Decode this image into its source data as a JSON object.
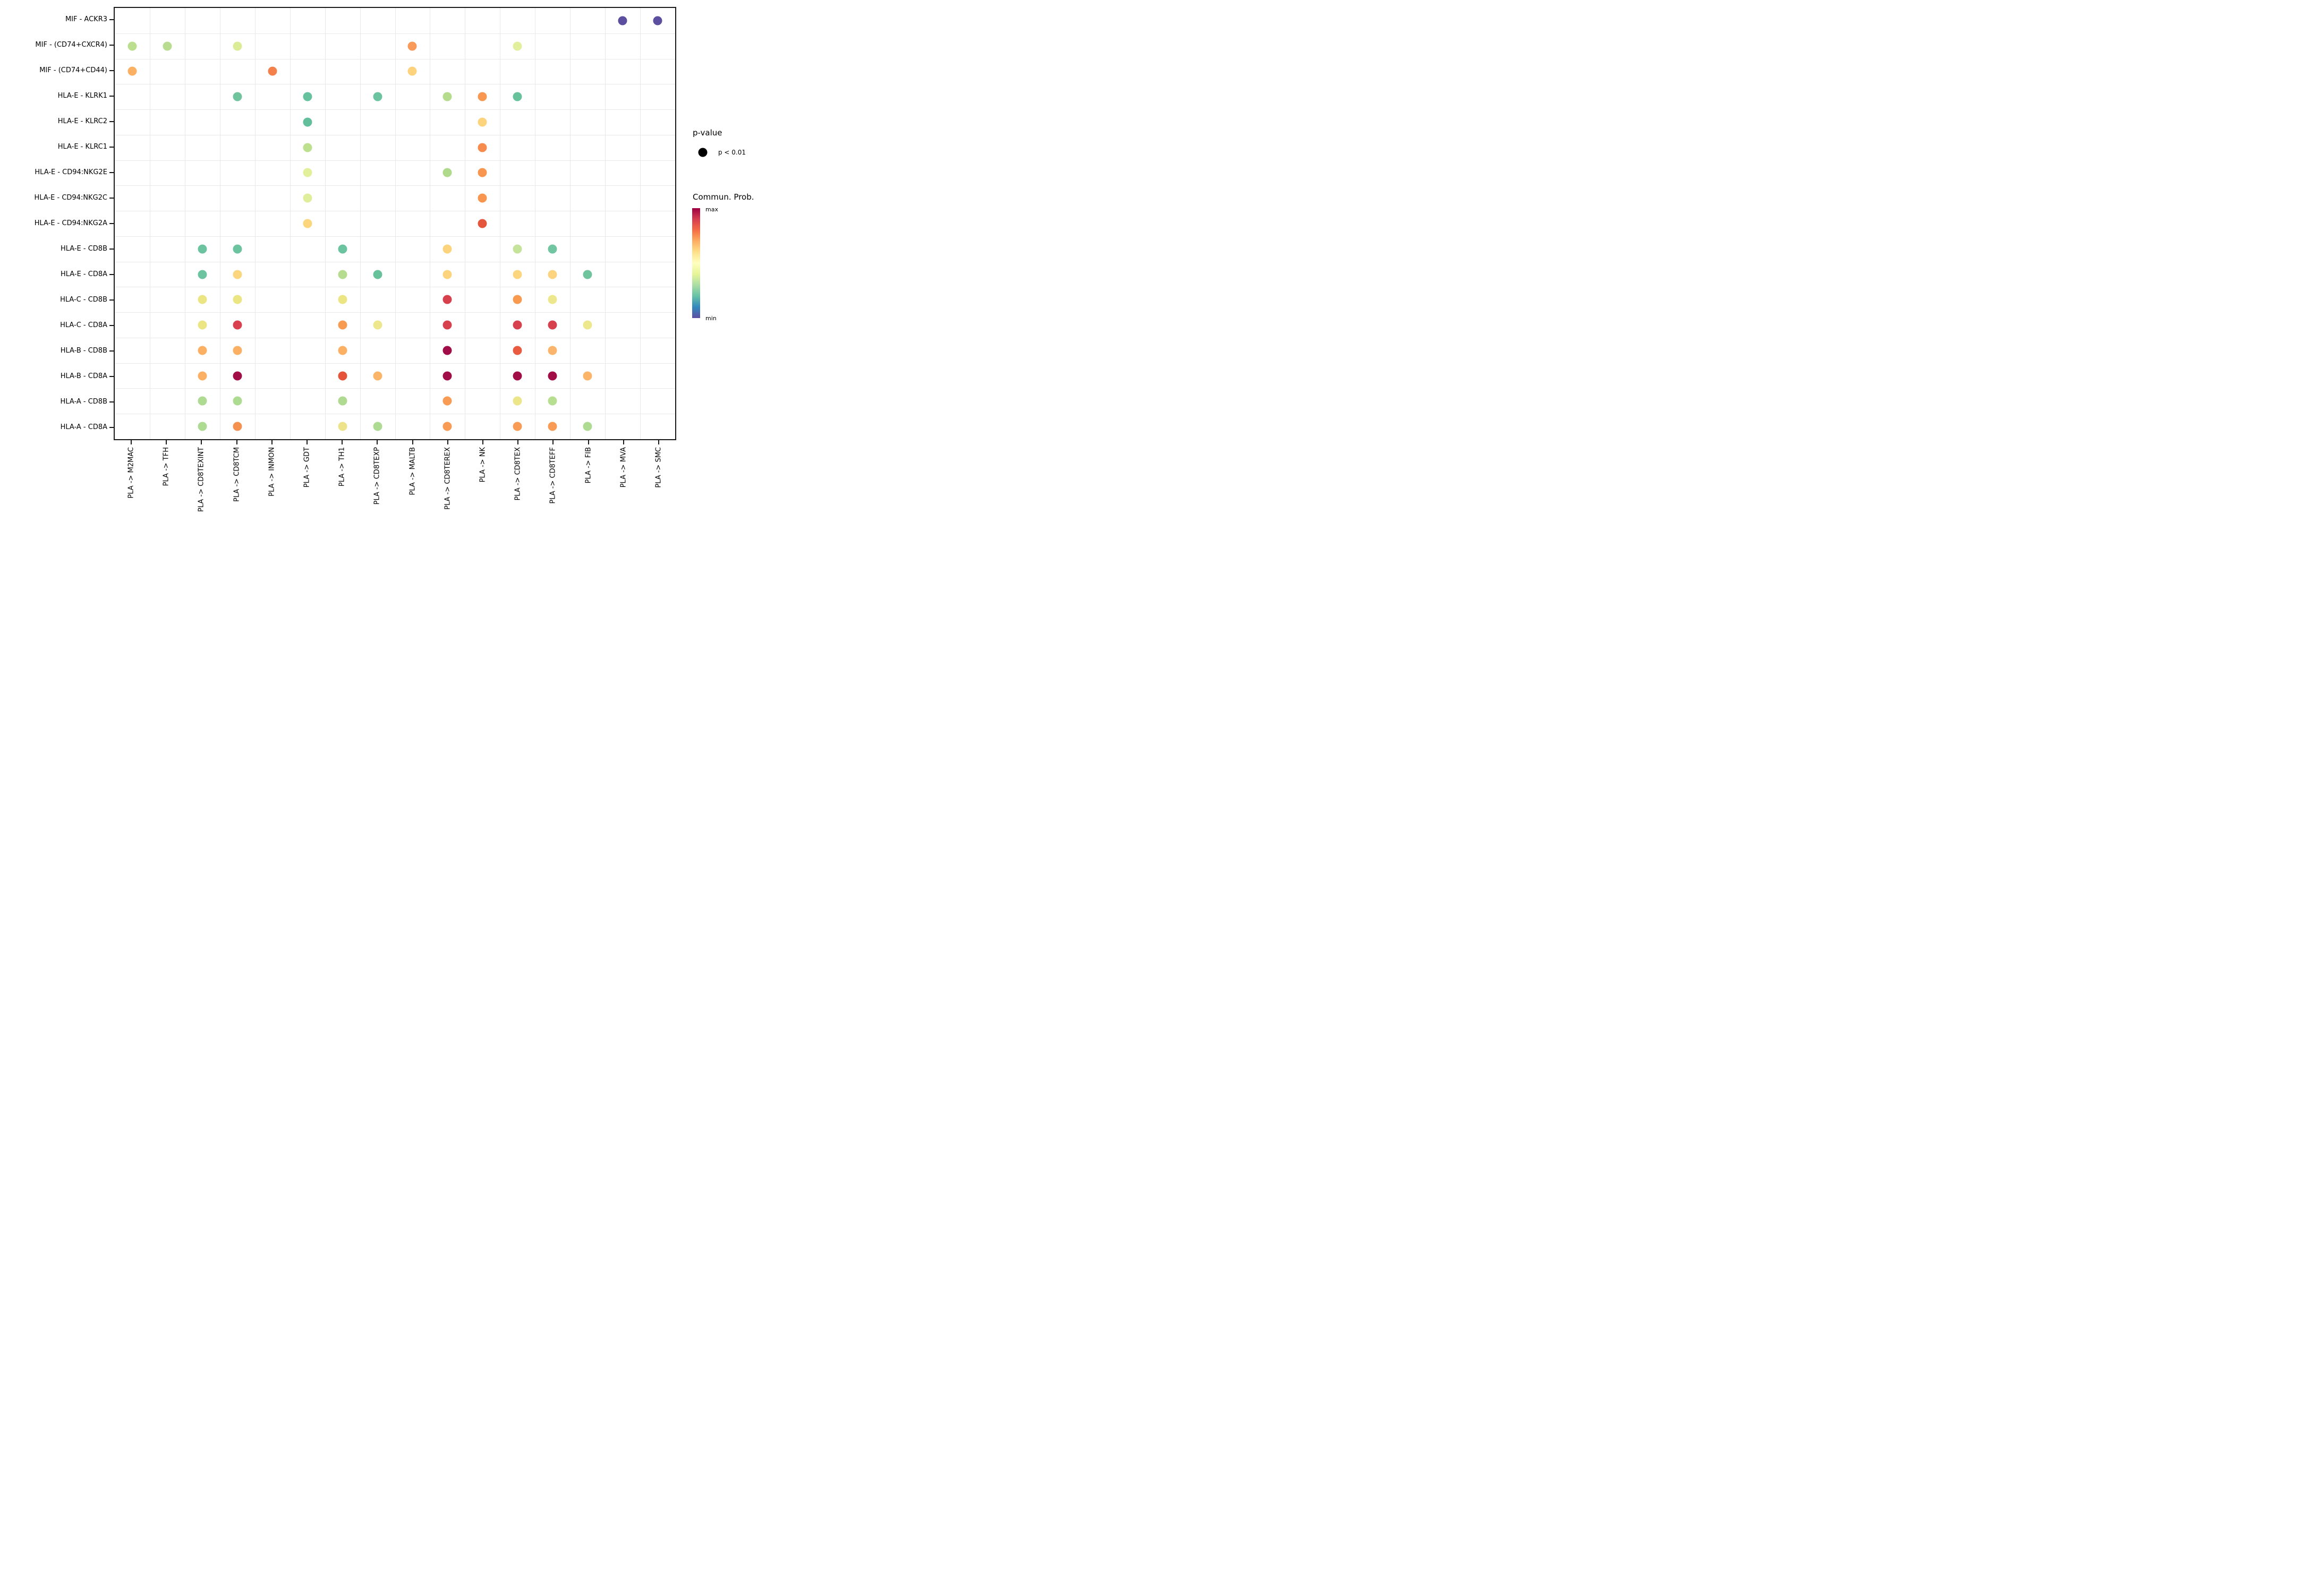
{
  "figure": {
    "background": "#FFFFFF",
    "axis_border_color": "#1A1A1A",
    "gridline_color": "#E8E8E8"
  },
  "legend": {
    "pvalue_title": "p-value",
    "pvalue_items": [
      {
        "label": "p < 0.01",
        "dot_color": "#000000"
      }
    ],
    "colorbar_title": "Commun. Prob.",
    "colorbar_max_label": "max",
    "colorbar_min_label": "min",
    "colorbar_gradient_top_to_bottom": [
      "#9E0142",
      "#D53E4F",
      "#F46D43",
      "#FDAE61",
      "#FEE08B",
      "#FFFFBF",
      "#E6F598",
      "#ABDDA4",
      "#66C2A5",
      "#3288BD",
      "#5E4FA2"
    ]
  },
  "chart_data": {
    "type": "scatter",
    "subtype": "dot-matrix-bubble-plot",
    "x_categories": [
      "PLA -> M2MAC",
      "PLA -> TFH",
      "PLA -> CD8TEXINT",
      "PLA -> CD8TCM",
      "PLA -> INMON",
      "PLA -> GDT",
      "PLA -> TH1",
      "PLA -> CD8TEXP",
      "PLA -> MALTB",
      "PLA -> CD8TEREX",
      "PLA -> NK",
      "PLA -> CD8TEX",
      "PLA -> CD8TEFF",
      "PLA -> FIB",
      "PLA -> MVA",
      "PLA -> SMC"
    ],
    "y_categories": [
      "MIF - ACKR3",
      "MIF - (CD74+CXCR4)",
      "MIF - (CD74+CD44)",
      "HLA-E - KLRK1",
      "HLA-E - KLRC2",
      "HLA-E - KLRC1",
      "HLA-E - CD94:NKG2E",
      "HLA-E - CD94:NKG2C",
      "HLA-E - CD94:NKG2A",
      "HLA-E - CD8B",
      "HLA-E - CD8A",
      "HLA-C - CD8B",
      "HLA-C - CD8A",
      "HLA-B - CD8B",
      "HLA-B - CD8A",
      "HLA-A - CD8B",
      "HLA-A - CD8A"
    ],
    "color_encoding": "Commun. Prob.: min (purple #5E4FA2) to max (dark red #9E0142), reversed Spectral colormap",
    "size_encoding": "p-value: all plotted dots are p < 0.01 (uniform size)",
    "points_format": [
      "y_index",
      "x_index",
      "color"
    ],
    "points": [
      [
        0,
        14,
        "#5C4FA0"
      ],
      [
        0,
        15,
        "#5C4FA0"
      ],
      [
        1,
        0,
        "#BCDE8F"
      ],
      [
        1,
        1,
        "#B8DD90"
      ],
      [
        1,
        3,
        "#DCEC96"
      ],
      [
        1,
        8,
        "#F89A5A"
      ],
      [
        1,
        11,
        "#E2EF9D"
      ],
      [
        2,
        0,
        "#FBB064"
      ],
      [
        2,
        4,
        "#F4814C"
      ],
      [
        2,
        8,
        "#FDD37E"
      ],
      [
        3,
        3,
        "#6FC49D"
      ],
      [
        3,
        5,
        "#66C19E"
      ],
      [
        3,
        7,
        "#6CC3A0"
      ],
      [
        3,
        9,
        "#B5DC8D"
      ],
      [
        3,
        10,
        "#F8974F"
      ],
      [
        3,
        11,
        "#67C19B"
      ],
      [
        4,
        5,
        "#63BF9B"
      ],
      [
        4,
        10,
        "#FCD47D"
      ],
      [
        5,
        5,
        "#BCE08D"
      ],
      [
        5,
        10,
        "#F68B4D"
      ],
      [
        6,
        5,
        "#E2EF9B"
      ],
      [
        6,
        9,
        "#AFDA8C"
      ],
      [
        6,
        10,
        "#F8964F"
      ],
      [
        7,
        5,
        "#DFEE9A"
      ],
      [
        7,
        10,
        "#F8964F"
      ],
      [
        8,
        5,
        "#FBD67D"
      ],
      [
        8,
        10,
        "#E4563C"
      ],
      [
        9,
        2,
        "#6CC3A0"
      ],
      [
        9,
        3,
        "#6CC3A0"
      ],
      [
        9,
        6,
        "#6CC3A0"
      ],
      [
        9,
        9,
        "#FCD47D"
      ],
      [
        9,
        11,
        "#C6E39C"
      ],
      [
        9,
        12,
        "#71C5A1"
      ],
      [
        10,
        2,
        "#6CC3A0"
      ],
      [
        10,
        3,
        "#FCD67E"
      ],
      [
        10,
        6,
        "#B5DC8F"
      ],
      [
        10,
        7,
        "#67C19B"
      ],
      [
        10,
        9,
        "#FCD47D"
      ],
      [
        10,
        11,
        "#FCD67E"
      ],
      [
        10,
        12,
        "#FCD480"
      ],
      [
        10,
        13,
        "#6FC49D"
      ],
      [
        11,
        2,
        "#EBE583"
      ],
      [
        11,
        3,
        "#EBE583"
      ],
      [
        11,
        6,
        "#EBE583"
      ],
      [
        11,
        9,
        "#D7414D"
      ],
      [
        11,
        11,
        "#F89B51"
      ],
      [
        11,
        12,
        "#EDE88D"
      ],
      [
        12,
        2,
        "#EBE583"
      ],
      [
        12,
        3,
        "#D8414D"
      ],
      [
        12,
        6,
        "#F79B51"
      ],
      [
        12,
        7,
        "#EDE78D"
      ],
      [
        12,
        9,
        "#D7414D"
      ],
      [
        12,
        11,
        "#D7414D"
      ],
      [
        12,
        12,
        "#D7414D"
      ],
      [
        12,
        13,
        "#EDE88D"
      ],
      [
        13,
        2,
        "#FBB064"
      ],
      [
        13,
        3,
        "#FBB064"
      ],
      [
        13,
        6,
        "#FBB064"
      ],
      [
        13,
        9,
        "#A00D47"
      ],
      [
        13,
        11,
        "#E85B40"
      ],
      [
        13,
        12,
        "#FBB46B"
      ],
      [
        14,
        2,
        "#FBB064"
      ],
      [
        14,
        3,
        "#A00D47"
      ],
      [
        14,
        6,
        "#E5533A"
      ],
      [
        14,
        7,
        "#FBB568"
      ],
      [
        14,
        9,
        "#A00D47"
      ],
      [
        14,
        11,
        "#A00D47"
      ],
      [
        14,
        12,
        "#A00D47"
      ],
      [
        14,
        13,
        "#FBB468"
      ],
      [
        15,
        2,
        "#AFDA92"
      ],
      [
        15,
        3,
        "#AEDB92"
      ],
      [
        15,
        6,
        "#AFDA92"
      ],
      [
        15,
        9,
        "#F89C55"
      ],
      [
        15,
        11,
        "#EDE58A"
      ],
      [
        15,
        12,
        "#B7DE91"
      ],
      [
        16,
        2,
        "#AEDB92"
      ],
      [
        16,
        3,
        "#F5914F"
      ],
      [
        16,
        6,
        "#EDE38B"
      ],
      [
        16,
        7,
        "#AEDB92"
      ],
      [
        16,
        9,
        "#F89C55"
      ],
      [
        16,
        11,
        "#F89C55"
      ],
      [
        16,
        12,
        "#F89C55"
      ],
      [
        16,
        13,
        "#AEDB92"
      ]
    ],
    "grid": "light gray minor gridlines at category boundaries",
    "legend_position": "right"
  }
}
